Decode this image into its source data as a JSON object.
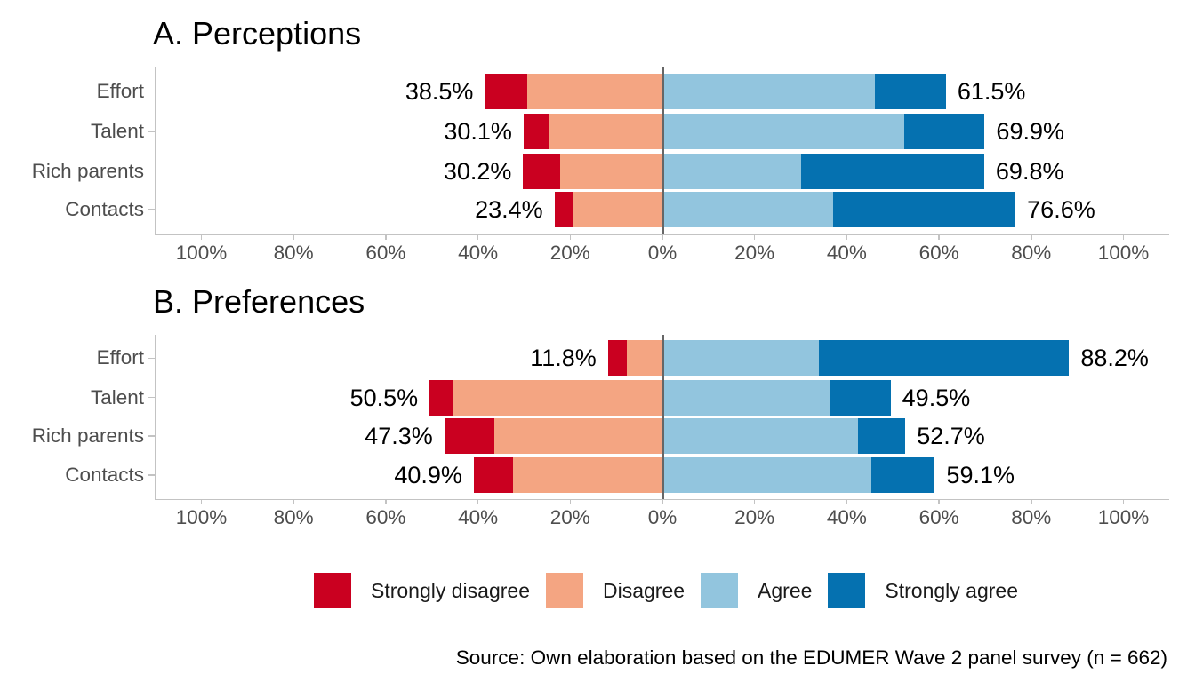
{
  "chart_data": [
    {
      "type": "bar",
      "orientation": "horizontal-diverging",
      "title": "A. Perceptions",
      "categories": [
        "Effort",
        "Talent",
        "Rich parents",
        "Contacts"
      ],
      "series": [
        {
          "name": "Strongly disagree",
          "side": "left",
          "color": "#ca0020",
          "values": [
            9.2,
            5.6,
            8.1,
            4.0
          ]
        },
        {
          "name": "Disagree",
          "side": "left",
          "color": "#f4a582",
          "values": [
            29.3,
            24.5,
            22.1,
            19.4
          ]
        },
        {
          "name": "Agree",
          "side": "right",
          "color": "#92c5de",
          "values": [
            46.0,
            52.4,
            30.0,
            37.0
          ]
        },
        {
          "name": "Strongly agree",
          "side": "right",
          "color": "#0571b0",
          "values": [
            15.5,
            17.5,
            39.8,
            39.6
          ]
        }
      ],
      "totals_left": [
        "38.5%",
        "30.1%",
        "30.2%",
        "23.4%"
      ],
      "totals_right": [
        "61.5%",
        "69.9%",
        "69.8%",
        "76.6%"
      ],
      "x_axis": {
        "tick_values": [
          -100,
          -80,
          -60,
          -40,
          -20,
          0,
          20,
          40,
          60,
          80,
          100
        ],
        "tick_labels": [
          "100%",
          "80%",
          "60%",
          "40%",
          "20%",
          "0%",
          "20%",
          "40%",
          "60%",
          "80%",
          "100%"
        ],
        "range": [
          -110,
          110
        ]
      },
      "zero_line": true,
      "grid": false
    },
    {
      "type": "bar",
      "orientation": "horizontal-diverging",
      "title": "B. Preferences",
      "categories": [
        "Effort",
        "Talent",
        "Rich parents",
        "Contacts"
      ],
      "series": [
        {
          "name": "Strongly disagree",
          "side": "left",
          "color": "#ca0020",
          "values": [
            4.0,
            5.0,
            10.9,
            8.5
          ]
        },
        {
          "name": "Disagree",
          "side": "left",
          "color": "#f4a582",
          "values": [
            7.8,
            45.5,
            36.4,
            32.4
          ]
        },
        {
          "name": "Agree",
          "side": "right",
          "color": "#92c5de",
          "values": [
            33.9,
            36.5,
            42.4,
            45.3
          ]
        },
        {
          "name": "Strongly agree",
          "side": "right",
          "color": "#0571b0",
          "values": [
            54.3,
            13.0,
            10.3,
            13.8
          ]
        }
      ],
      "totals_left": [
        "11.8%",
        "50.5%",
        "47.3%",
        "40.9%"
      ],
      "totals_right": [
        "88.2%",
        "49.5%",
        "52.7%",
        "59.1%"
      ],
      "x_axis": {
        "tick_values": [
          -100,
          -80,
          -60,
          -40,
          -20,
          0,
          20,
          40,
          60,
          80,
          100
        ],
        "tick_labels": [
          "100%",
          "80%",
          "60%",
          "40%",
          "20%",
          "0%",
          "20%",
          "40%",
          "60%",
          "80%",
          "100%"
        ],
        "range": [
          -110,
          110
        ]
      },
      "zero_line": true,
      "grid": false
    }
  ],
  "legend": {
    "position": "bottom",
    "items": [
      {
        "label": "Strongly disagree",
        "color": "#ca0020"
      },
      {
        "label": "Disagree",
        "color": "#f4a582"
      },
      {
        "label": "Agree",
        "color": "#92c5de"
      },
      {
        "label": "Strongly agree",
        "color": "#0571b0"
      }
    ]
  },
  "source_note": "Source: Own elaboration based on the EDUMER Wave 2 panel survey (n = 662)",
  "colors": {
    "axis_line": "#c3c3c3",
    "axis_text": "#4d4d4d",
    "zero_line": "#666666",
    "title_text": "#000000",
    "value_text": "#000000",
    "background": "#ffffff"
  }
}
